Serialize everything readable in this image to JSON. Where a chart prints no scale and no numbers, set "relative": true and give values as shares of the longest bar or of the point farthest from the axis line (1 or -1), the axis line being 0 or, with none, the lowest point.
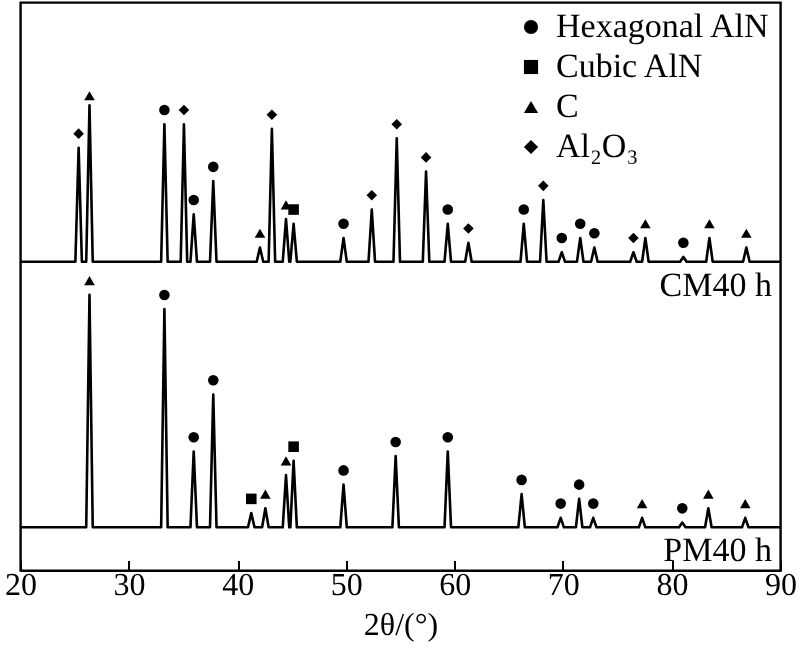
{
  "chart_data": {
    "type": "line",
    "relative": true,
    "xlabel": "2θ/(°)",
    "xlim": [
      20,
      90
    ],
    "xticks": [
      20,
      30,
      40,
      50,
      60,
      70,
      80,
      90
    ],
    "grid": false,
    "legend": "top right",
    "line_style": "solid",
    "series": [
      {
        "name": "CM40 h",
        "color": "#000000",
        "marker": "none",
        "x": [
          20,
          25.1,
          25.4,
          25.7,
          26.1,
          26.4,
          26.7,
          33.0,
          33.3,
          33.6,
          34.8,
          35.1,
          35.4,
          35.7,
          36.0,
          36.3,
          37.5,
          37.8,
          38.1,
          41.8,
          42.1,
          42.4,
          42.9,
          43.2,
          43.5,
          44.2,
          44.5,
          44.8,
          44.9,
          45.2,
          45.5,
          49.5,
          49.8,
          50.1,
          52.1,
          52.4,
          52.7,
          54.4,
          54.7,
          55.0,
          57.1,
          57.4,
          57.7,
          59.1,
          59.4,
          59.7,
          61.0,
          61.3,
          61.6,
          66.1,
          66.4,
          66.7,
          67.9,
          68.2,
          68.5,
          69.6,
          69.9,
          70.2,
          71.3,
          71.6,
          71.9,
          72.6,
          72.9,
          73.2,
          76.2,
          76.5,
          76.8,
          77.3,
          77.6,
          77.9,
          80.8,
          81.1,
          81.4,
          83.2,
          83.5,
          83.8,
          86.6,
          86.9,
          87.2,
          90
        ],
        "values": [
          0.65,
          0.65,
          0.89,
          0.65,
          0.65,
          0.98,
          0.65,
          0.65,
          0.94,
          0.65,
          0.65,
          0.94,
          0.65,
          0.65,
          0.75,
          0.65,
          0.65,
          0.82,
          0.65,
          0.65,
          0.68,
          0.65,
          0.65,
          0.93,
          0.65,
          0.65,
          0.74,
          0.65,
          0.65,
          0.73,
          0.65,
          0.65,
          0.7,
          0.65,
          0.65,
          0.76,
          0.65,
          0.65,
          0.91,
          0.65,
          0.65,
          0.84,
          0.65,
          0.65,
          0.73,
          0.65,
          0.65,
          0.69,
          0.65,
          0.65,
          0.73,
          0.65,
          0.65,
          0.78,
          0.65,
          0.65,
          0.67,
          0.65,
          0.65,
          0.7,
          0.65,
          0.65,
          0.68,
          0.65,
          0.65,
          0.67,
          0.65,
          0.65,
          0.7,
          0.65,
          0.65,
          0.66,
          0.65,
          0.65,
          0.7,
          0.65,
          0.65,
          0.68,
          0.65,
          0.65
        ]
      },
      {
        "name": "PM40 h",
        "color": "#000000",
        "marker": "none",
        "x": [
          20,
          26.1,
          26.4,
          26.7,
          33.0,
          33.3,
          33.6,
          35.7,
          36.0,
          36.3,
          37.5,
          37.8,
          38.1,
          41.0,
          41.3,
          41.6,
          42.3,
          42.6,
          42.9,
          44.2,
          44.5,
          44.8,
          44.9,
          45.2,
          45.5,
          49.5,
          49.8,
          50.1,
          54.3,
          54.6,
          54.9,
          59.1,
          59.4,
          59.7,
          65.9,
          66.2,
          66.5,
          69.5,
          69.8,
          70.1,
          71.2,
          71.5,
          71.8,
          72.5,
          72.8,
          73.1,
          77.0,
          77.3,
          77.6,
          80.7,
          81.0,
          81.3,
          83.1,
          83.4,
          83.7,
          86.5,
          86.8,
          87.1,
          90
        ],
        "values": [
          0.09,
          0.09,
          0.58,
          0.09,
          0.09,
          0.55,
          0.09,
          0.09,
          0.25,
          0.09,
          0.09,
          0.37,
          0.09,
          0.09,
          0.12,
          0.09,
          0.09,
          0.13,
          0.09,
          0.09,
          0.2,
          0.09,
          0.09,
          0.23,
          0.09,
          0.09,
          0.18,
          0.09,
          0.09,
          0.24,
          0.09,
          0.09,
          0.25,
          0.09,
          0.09,
          0.16,
          0.09,
          0.09,
          0.11,
          0.09,
          0.09,
          0.15,
          0.09,
          0.09,
          0.11,
          0.09,
          0.09,
          0.11,
          0.09,
          0.09,
          0.1,
          0.09,
          0.09,
          0.13,
          0.09,
          0.09,
          0.11,
          0.09,
          0.09
        ]
      },
      {
        "name": "Hexagonal AlN",
        "type": "scatter",
        "color": "#000000",
        "marker": "circle",
        "x": [
          33.3,
          36.0,
          37.8,
          49.8,
          59.4,
          66.4,
          69.9,
          71.6,
          72.9,
          81.1,
          33.3,
          36.0,
          37.8,
          49.8,
          54.6,
          59.4,
          66.2,
          69.8,
          71.5,
          72.8,
          81.0
        ],
        "values": [
          0.97,
          0.78,
          0.85,
          0.73,
          0.76,
          0.76,
          0.7,
          0.73,
          0.71,
          0.69,
          0.58,
          0.28,
          0.4,
          0.21,
          0.27,
          0.28,
          0.19,
          0.14,
          0.18,
          0.14,
          0.13
        ]
      },
      {
        "name": "Cubic AlN",
        "type": "scatter",
        "color": "#000000",
        "marker": "square",
        "x": [
          45.2,
          41.3,
          45.2
        ],
        "values": [
          0.76,
          0.15,
          0.26
        ]
      },
      {
        "name": "C",
        "type": "scatter",
        "color": "#000000",
        "marker": "triangle",
        "x": [
          26.4,
          42.1,
          44.5,
          77.6,
          83.5,
          86.9,
          26.4,
          42.6,
          44.5,
          77.3,
          83.4,
          86.8
        ],
        "values": [
          1.0,
          0.71,
          0.77,
          0.73,
          0.73,
          0.71,
          0.61,
          0.16,
          0.23,
          0.14,
          0.16,
          0.14
        ]
      },
      {
        "name": "Al₂O₃",
        "type": "scatter",
        "color": "#000000",
        "marker": "diamond",
        "x": [
          25.4,
          35.1,
          43.2,
          52.4,
          54.7,
          57.4,
          61.3,
          68.2,
          76.5
        ],
        "values": [
          0.92,
          0.97,
          0.96,
          0.79,
          0.94,
          0.87,
          0.72,
          0.81,
          0.7
        ]
      }
    ]
  }
}
